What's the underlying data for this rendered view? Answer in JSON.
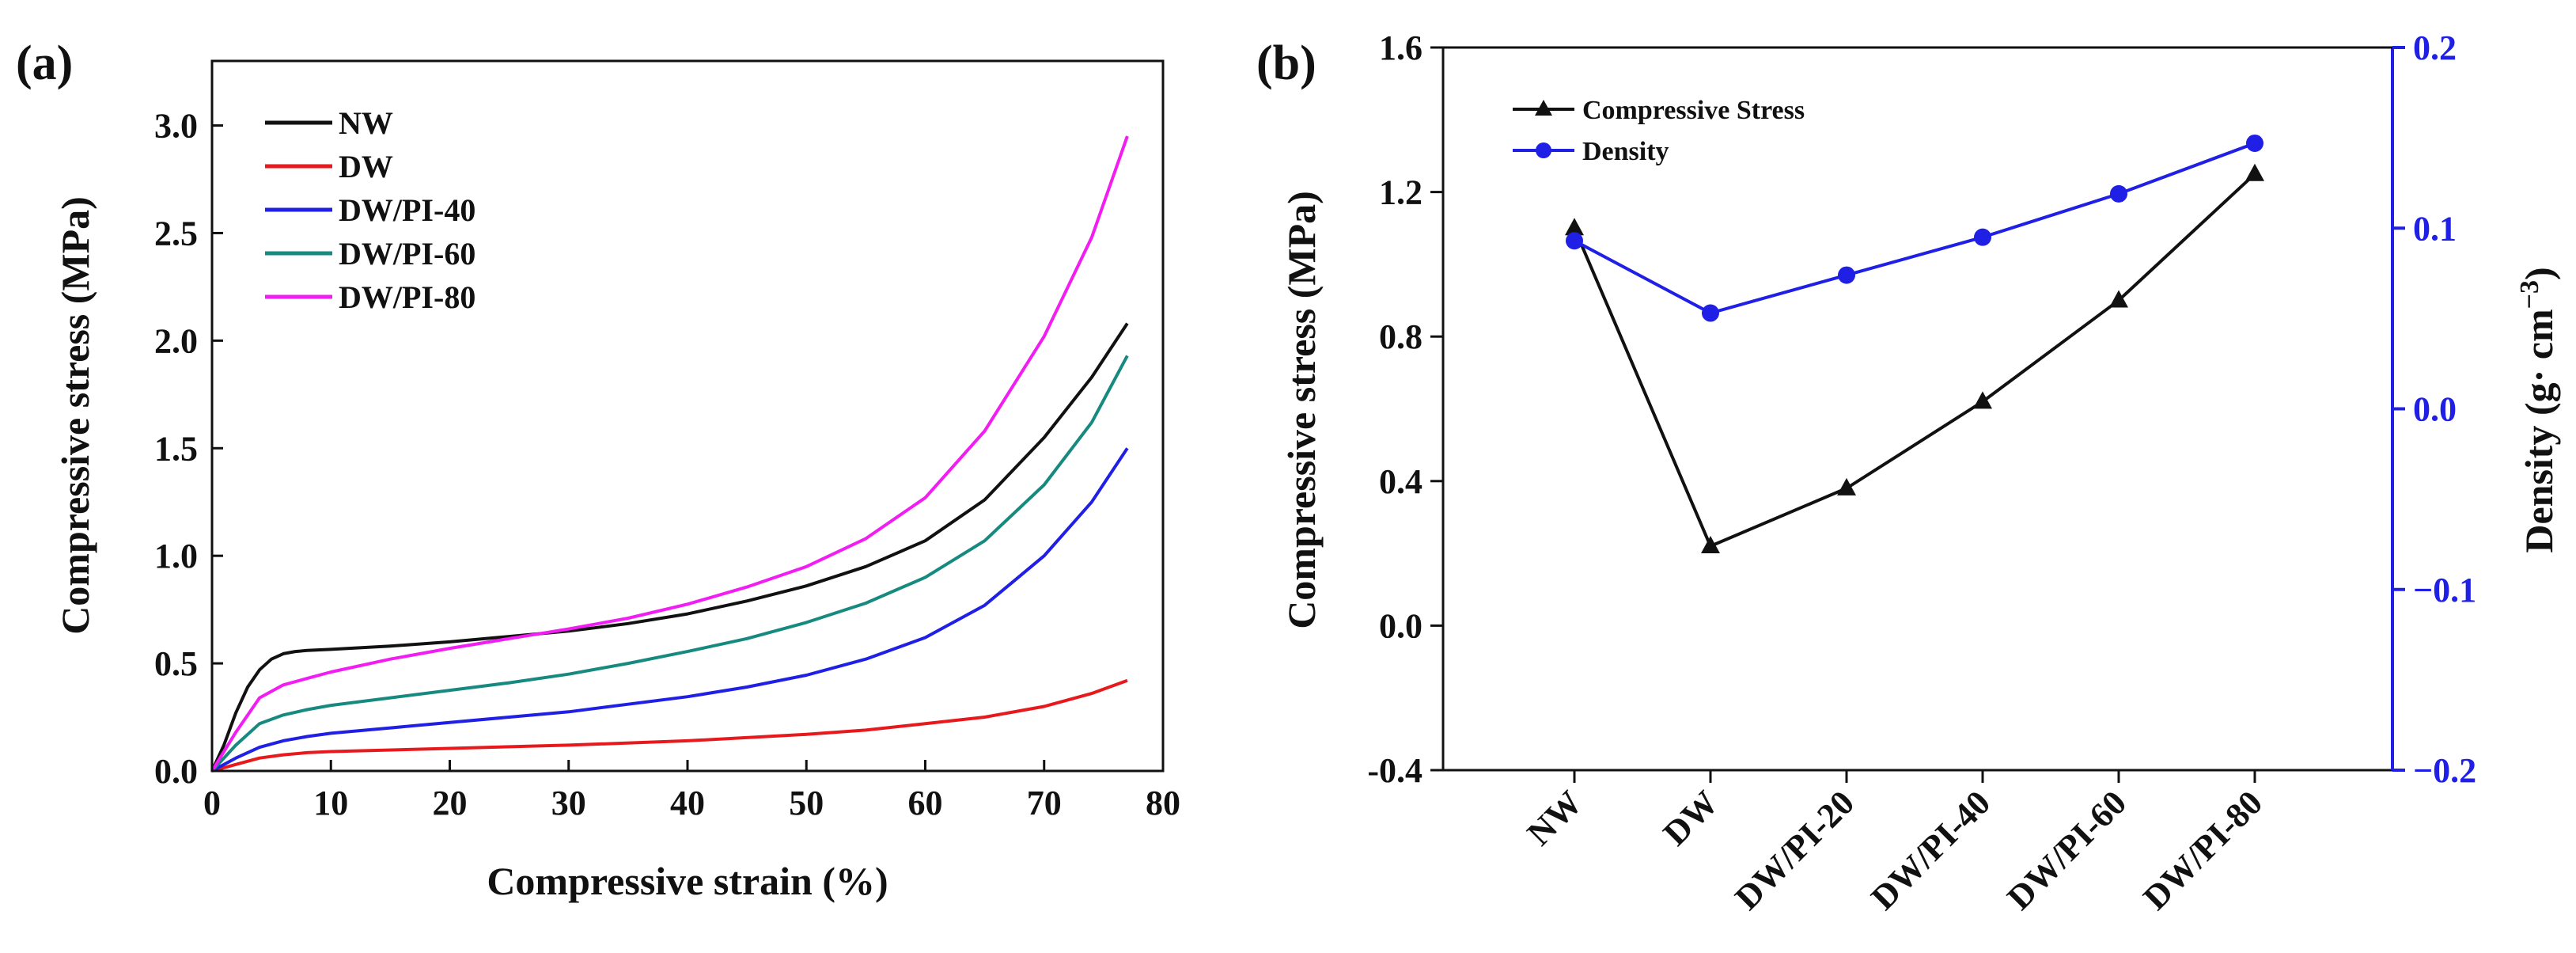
{
  "colors": {
    "NW": "#111111",
    "DW": "#e8191c",
    "DW/PI-40": "#1f1fe6",
    "DW/PI-60": "#178a80",
    "DW/PI-80": "#f21df2",
    "compressive_stress": "#111111",
    "density": "#1f1fe6"
  },
  "panels": {
    "a": {
      "label": "(a)"
    },
    "b": {
      "label": "(b)"
    }
  },
  "chart_data": [
    {
      "type": "line",
      "panel": "(a)",
      "xlabel": "Compressive strain (%)",
      "ylabel": "Compressive stress (MPa)",
      "xlim": [
        0,
        80
      ],
      "ylim": [
        0,
        3.3
      ],
      "xticks": [
        0,
        10,
        20,
        30,
        40,
        50,
        60,
        70,
        80
      ],
      "xtick_labels": [
        "0",
        "10",
        "20",
        "30",
        "40",
        "50",
        "60",
        "70",
        "80"
      ],
      "yticks": [
        0,
        0.5,
        1.0,
        1.5,
        2.0,
        2.5,
        3.0
      ],
      "ytick_labels": [
        "0.0",
        "0.5",
        "1.0",
        "1.5",
        "2.0",
        "2.5",
        "3.0"
      ],
      "legend_position": "top-left",
      "series": [
        {
          "name": "NW",
          "color_key": "NW",
          "x": [
            0,
            1,
            2,
            3,
            4,
            5,
            6,
            7,
            8,
            10,
            15,
            20,
            25,
            30,
            35,
            40,
            45,
            50,
            55,
            60,
            65,
            70,
            74,
            77
          ],
          "y": [
            0,
            0.12,
            0.27,
            0.39,
            0.47,
            0.52,
            0.545,
            0.555,
            0.56,
            0.565,
            0.58,
            0.6,
            0.625,
            0.65,
            0.685,
            0.73,
            0.79,
            0.86,
            0.95,
            1.07,
            1.26,
            1.55,
            1.83,
            2.08
          ]
        },
        {
          "name": "DW",
          "color_key": "DW",
          "x": [
            0,
            2,
            4,
            6,
            8,
            10,
            20,
            30,
            40,
            50,
            55,
            60,
            65,
            70,
            74,
            77
          ],
          "y": [
            0,
            0.03,
            0.06,
            0.075,
            0.085,
            0.09,
            0.105,
            0.12,
            0.14,
            0.17,
            0.19,
            0.22,
            0.25,
            0.3,
            0.36,
            0.42
          ]
        },
        {
          "name": "DW/PI-40",
          "color_key": "DW/PI-40",
          "x": [
            0,
            2,
            4,
            6,
            8,
            10,
            15,
            20,
            25,
            30,
            35,
            40,
            45,
            50,
            55,
            60,
            65,
            70,
            74,
            77
          ],
          "y": [
            0,
            0.06,
            0.11,
            0.14,
            0.16,
            0.175,
            0.2,
            0.225,
            0.25,
            0.275,
            0.31,
            0.345,
            0.39,
            0.445,
            0.52,
            0.62,
            0.77,
            1.0,
            1.25,
            1.5
          ]
        },
        {
          "name": "DW/PI-60",
          "color_key": "DW/PI-60",
          "x": [
            0,
            2,
            4,
            6,
            8,
            10,
            15,
            20,
            25,
            30,
            35,
            40,
            45,
            50,
            55,
            60,
            65,
            70,
            74,
            77
          ],
          "y": [
            0,
            0.12,
            0.22,
            0.26,
            0.285,
            0.305,
            0.34,
            0.375,
            0.41,
            0.45,
            0.5,
            0.555,
            0.615,
            0.69,
            0.78,
            0.9,
            1.07,
            1.33,
            1.62,
            1.93
          ]
        },
        {
          "name": "DW/PI-80",
          "color_key": "DW/PI-80",
          "x": [
            0,
            2,
            4,
            6,
            8,
            10,
            15,
            20,
            25,
            30,
            35,
            40,
            45,
            50,
            55,
            60,
            65,
            70,
            74,
            77
          ],
          "y": [
            0,
            0.18,
            0.34,
            0.4,
            0.43,
            0.46,
            0.52,
            0.57,
            0.615,
            0.66,
            0.71,
            0.775,
            0.855,
            0.95,
            1.08,
            1.27,
            1.58,
            2.02,
            2.48,
            2.95
          ]
        }
      ]
    },
    {
      "type": "line",
      "panel": "(b)",
      "categories": [
        "NW",
        "DW",
        "DW/PI-20",
        "DW/PI-40",
        "DW/PI-60",
        "DW/PI-80"
      ],
      "ylabel": "Compressive stress (MPa)",
      "ylim": [
        -0.4,
        1.6
      ],
      "yticks": [
        -0.4,
        0.0,
        0.4,
        0.8,
        1.2,
        1.6
      ],
      "ytick_labels": [
        "-0.4",
        "0.0",
        "0.4",
        "0.8",
        "1.2",
        "1.6"
      ],
      "y2label_base": "Density (g· cm",
      "y2label_sup": "−3",
      "y2label_close": ")",
      "y2lim": [
        -0.2,
        0.2
      ],
      "y2ticks": [
        -0.2,
        -0.1,
        0.0,
        0.1,
        0.2
      ],
      "y2tick_labels": [
        "−0.2",
        "−0.1",
        "0.0",
        "0.1",
        "0.2"
      ],
      "legend_position": "top-left",
      "series": [
        {
          "name": "Compressive Stress",
          "axis": "left",
          "marker": "triangle",
          "color_key": "compressive_stress",
          "values": [
            1.1,
            0.22,
            0.38,
            0.62,
            0.9,
            1.25
          ]
        },
        {
          "name": "Density",
          "axis": "right",
          "marker": "circle",
          "color_key": "density",
          "values": [
            0.093,
            0.053,
            0.074,
            0.095,
            0.119,
            0.147
          ]
        }
      ]
    }
  ]
}
